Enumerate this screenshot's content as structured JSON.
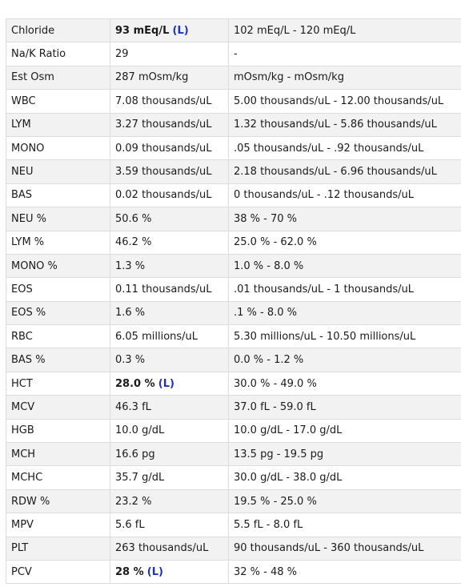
{
  "rows": [
    {
      "name": "Chloride",
      "value": "93 mEq/L",
      "flag": "(L)",
      "range": "102 mEq/L - 120 mEq/L"
    },
    {
      "name": "Na/K Ratio",
      "value": "29",
      "flag": "",
      "range": "-"
    },
    {
      "name": "Est Osm",
      "value": "287 mOsm/kg",
      "flag": "",
      "range": "mOsm/kg - mOsm/kg"
    },
    {
      "name": "WBC",
      "value": "7.08 thousands/uL",
      "flag": "",
      "range": "5.00 thousands/uL - 12.00 thousands/uL"
    },
    {
      "name": "LYM",
      "value": "3.27 thousands/uL",
      "flag": "",
      "range": "1.32 thousands/uL - 5.86 thousands/uL"
    },
    {
      "name": "MONO",
      "value": "0.09 thousands/uL",
      "flag": "",
      "range": ".05 thousands/uL - .92 thousands/uL"
    },
    {
      "name": "NEU",
      "value": "3.59 thousands/uL",
      "flag": "",
      "range": "2.18 thousands/uL - 6.96 thousands/uL"
    },
    {
      "name": "BAS",
      "value": "0.02 thousands/uL",
      "flag": "",
      "range": "0 thousands/uL - .12 thousands/uL"
    },
    {
      "name": "NEU %",
      "value": "50.6 %",
      "flag": "",
      "range": "38 % - 70 %"
    },
    {
      "name": "LYM %",
      "value": "46.2 %",
      "flag": "",
      "range": "25.0 % - 62.0 %"
    },
    {
      "name": "MONO %",
      "value": "1.3 %",
      "flag": "",
      "range": "1.0 % - 8.0 %"
    },
    {
      "name": "EOS",
      "value": "0.11 thousands/uL",
      "flag": "",
      "range": ".01 thousands/uL - 1 thousands/uL"
    },
    {
      "name": "EOS %",
      "value": "1.6 %",
      "flag": "",
      "range": ".1 % - 8.0 %"
    },
    {
      "name": "RBC",
      "value": "6.05 millions/uL",
      "flag": "",
      "range": "5.30 millions/uL - 10.50 millions/uL"
    },
    {
      "name": "BAS %",
      "value": "0.3 %",
      "flag": "",
      "range": "0.0 % - 1.2 %"
    },
    {
      "name": "HCT",
      "value": "28.0 %",
      "flag": "(L)",
      "range": "30.0 % - 49.0 %"
    },
    {
      "name": "MCV",
      "value": "46.3 fL",
      "flag": "",
      "range": "37.0 fL - 59.0 fL"
    },
    {
      "name": "HGB",
      "value": "10.0 g/dL",
      "flag": "",
      "range": "10.0 g/dL - 17.0 g/dL"
    },
    {
      "name": "MCH",
      "value": "16.6 pg",
      "flag": "",
      "range": "13.5 pg - 19.5 pg"
    },
    {
      "name": "MCHC",
      "value": "35.7 g/dL",
      "flag": "",
      "range": "30.0 g/dL - 38.0 g/dL"
    },
    {
      "name": "RDW %",
      "value": "23.2 %",
      "flag": "",
      "range": "19.5 % - 25.0 %"
    },
    {
      "name": "MPV",
      "value": "5.6 fL",
      "flag": "",
      "range": "5.5 fL - 8.0 fL"
    },
    {
      "name": "PLT",
      "value": "263 thousands/uL",
      "flag": "",
      "range": "90 thousands/uL - 360 thousands/uL"
    },
    {
      "name": "PCV",
      "value": "28 %",
      "flag": "(L)",
      "range": "32 % - 48 %"
    }
  ],
  "colors": {
    "flag": "#1f33b8",
    "row_alt": "#f2f2f2",
    "border": "#dcdcdc"
  }
}
